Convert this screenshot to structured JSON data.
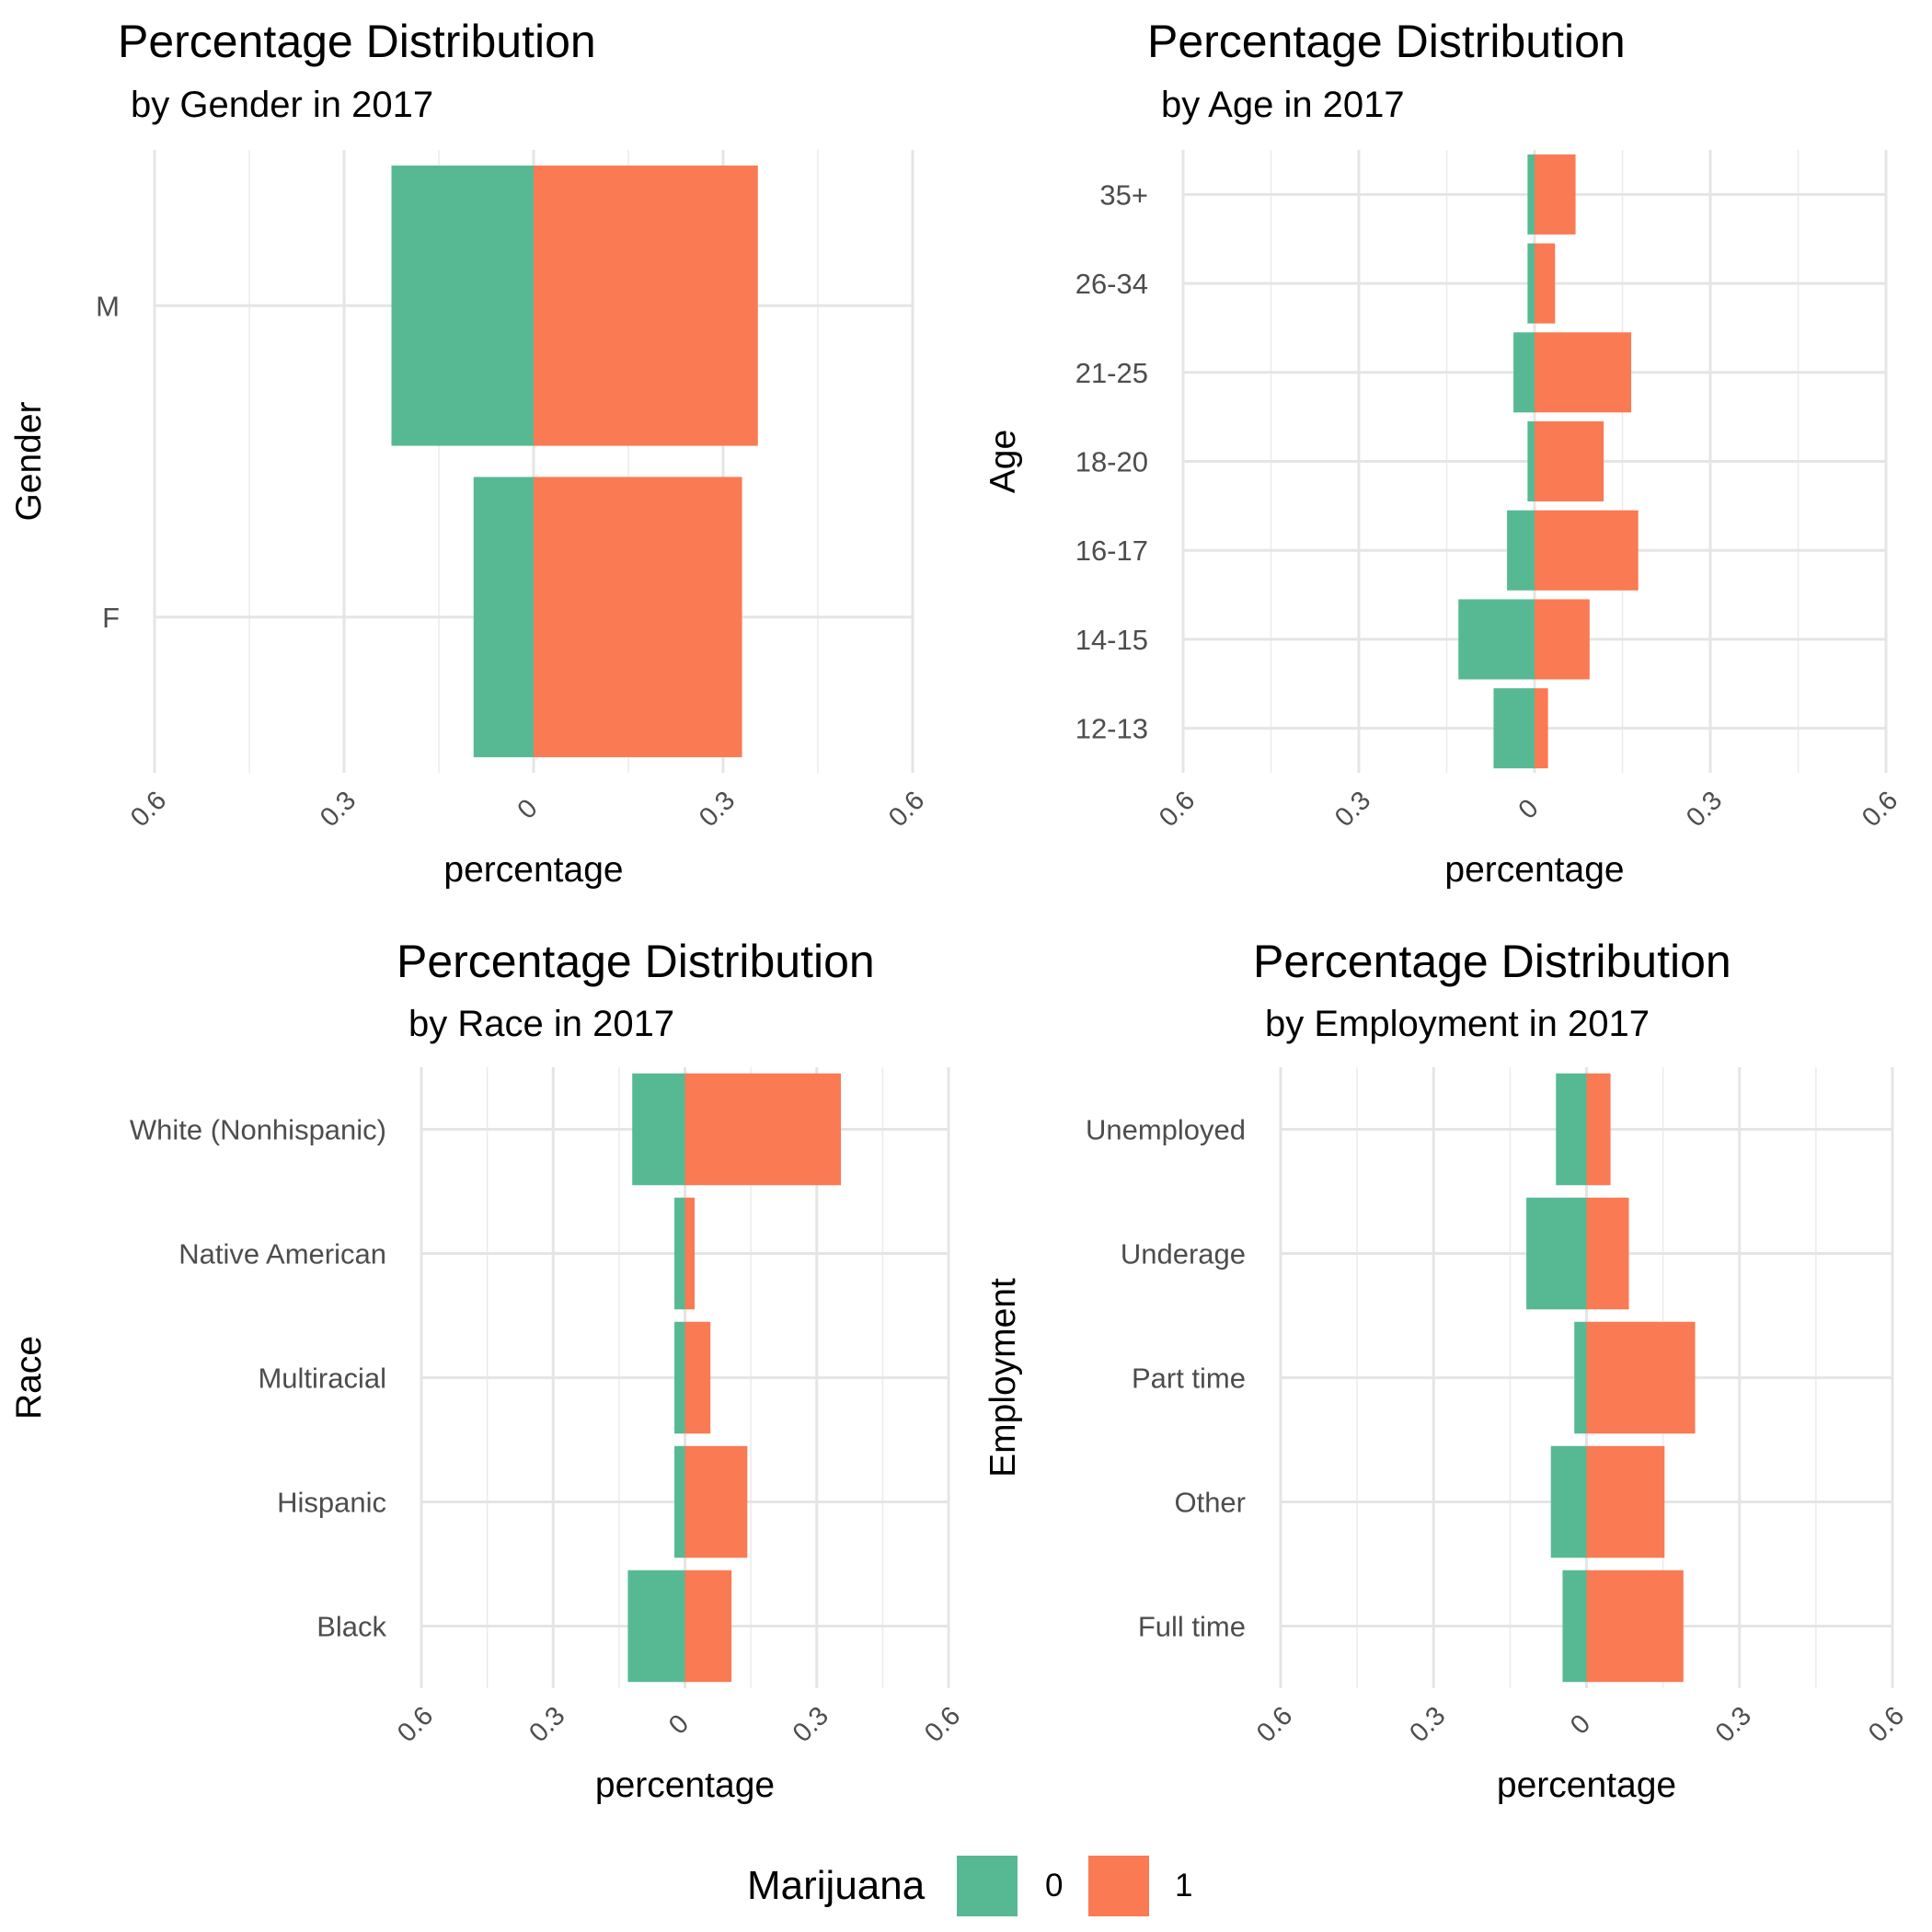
{
  "chart_data": [
    {
      "type": "bar",
      "orientation": "horizontal",
      "stacking": "diverging",
      "title": "Percentage Distribution",
      "subtitle": "by Gender in 2017",
      "xlabel": "percentage",
      "ylabel": "Gender",
      "xlim": [
        -0.6,
        0.6
      ],
      "xticks": [
        -0.6,
        -0.3,
        0,
        0.3,
        0.6
      ],
      "xtick_labels": [
        "0.6",
        "0.3",
        "0",
        "0.3",
        "0.6"
      ],
      "grid": true,
      "categories": [
        "M",
        "F"
      ],
      "series": [
        {
          "name": "0",
          "values": [
            -0.225,
            -0.095
          ]
        },
        {
          "name": "1",
          "values": [
            0.355,
            0.33
          ]
        }
      ]
    },
    {
      "type": "bar",
      "orientation": "horizontal",
      "stacking": "diverging",
      "title": "Percentage Distribution",
      "subtitle": "by Age in 2017",
      "xlabel": "percentage",
      "ylabel": "Age",
      "xlim": [
        -0.6,
        0.6
      ],
      "xticks": [
        -0.6,
        -0.3,
        0,
        0.3,
        0.6
      ],
      "xtick_labels": [
        "0.6",
        "0.3",
        "0",
        "0.3",
        "0.6"
      ],
      "grid": true,
      "categories": [
        "35+",
        "26-34",
        "21-25",
        "18-20",
        "16-17",
        "14-15",
        "12-13"
      ],
      "series": [
        {
          "name": "0",
          "values": [
            -0.012,
            -0.012,
            -0.036,
            -0.012,
            -0.047,
            -0.13,
            -0.07
          ]
        },
        {
          "name": "1",
          "values": [
            0.07,
            0.035,
            0.165,
            0.118,
            0.177,
            0.094,
            0.023
          ]
        }
      ]
    },
    {
      "type": "bar",
      "orientation": "horizontal",
      "stacking": "diverging",
      "title": "Percentage Distribution",
      "subtitle": "by Race in 2017",
      "xlabel": "percentage",
      "ylabel": "Race",
      "xlim": [
        -0.6,
        0.6
      ],
      "xticks": [
        -0.6,
        -0.3,
        0,
        0.3,
        0.6
      ],
      "xtick_labels": [
        "0.6",
        "0.3",
        "0",
        "0.3",
        "0.6"
      ],
      "grid": true,
      "categories": [
        "White (Nonhispanic)",
        "Native American",
        "Multiracial",
        "Hispanic",
        "Black"
      ],
      "series": [
        {
          "name": "0",
          "values": [
            -0.12,
            -0.024,
            -0.024,
            -0.024,
            -0.13
          ]
        },
        {
          "name": "1",
          "values": [
            0.355,
            0.022,
            0.058,
            0.142,
            0.106
          ]
        }
      ]
    },
    {
      "type": "bar",
      "orientation": "horizontal",
      "stacking": "diverging",
      "title": "Percentage Distribution",
      "subtitle": "by Employment in 2017",
      "xlabel": "percentage",
      "ylabel": "Employment",
      "xlim": [
        -0.6,
        0.6
      ],
      "xticks": [
        -0.6,
        -0.3,
        0,
        0.3,
        0.6
      ],
      "xtick_labels": [
        "0.6",
        "0.3",
        "0",
        "0.3",
        "0.6"
      ],
      "grid": true,
      "categories": [
        "Unemployed",
        "Underage",
        "Part time",
        "Other",
        "Full time"
      ],
      "series": [
        {
          "name": "0",
          "values": [
            -0.06,
            -0.118,
            -0.024,
            -0.07,
            -0.047
          ]
        },
        {
          "name": "1",
          "values": [
            0.047,
            0.083,
            0.213,
            0.153,
            0.19
          ]
        }
      ]
    }
  ],
  "legend": {
    "title": "Marijuana",
    "position": "bottom",
    "items": [
      {
        "label": "0",
        "color": "#57B994"
      },
      {
        "label": "1",
        "color": "#F97A53"
      }
    ]
  }
}
